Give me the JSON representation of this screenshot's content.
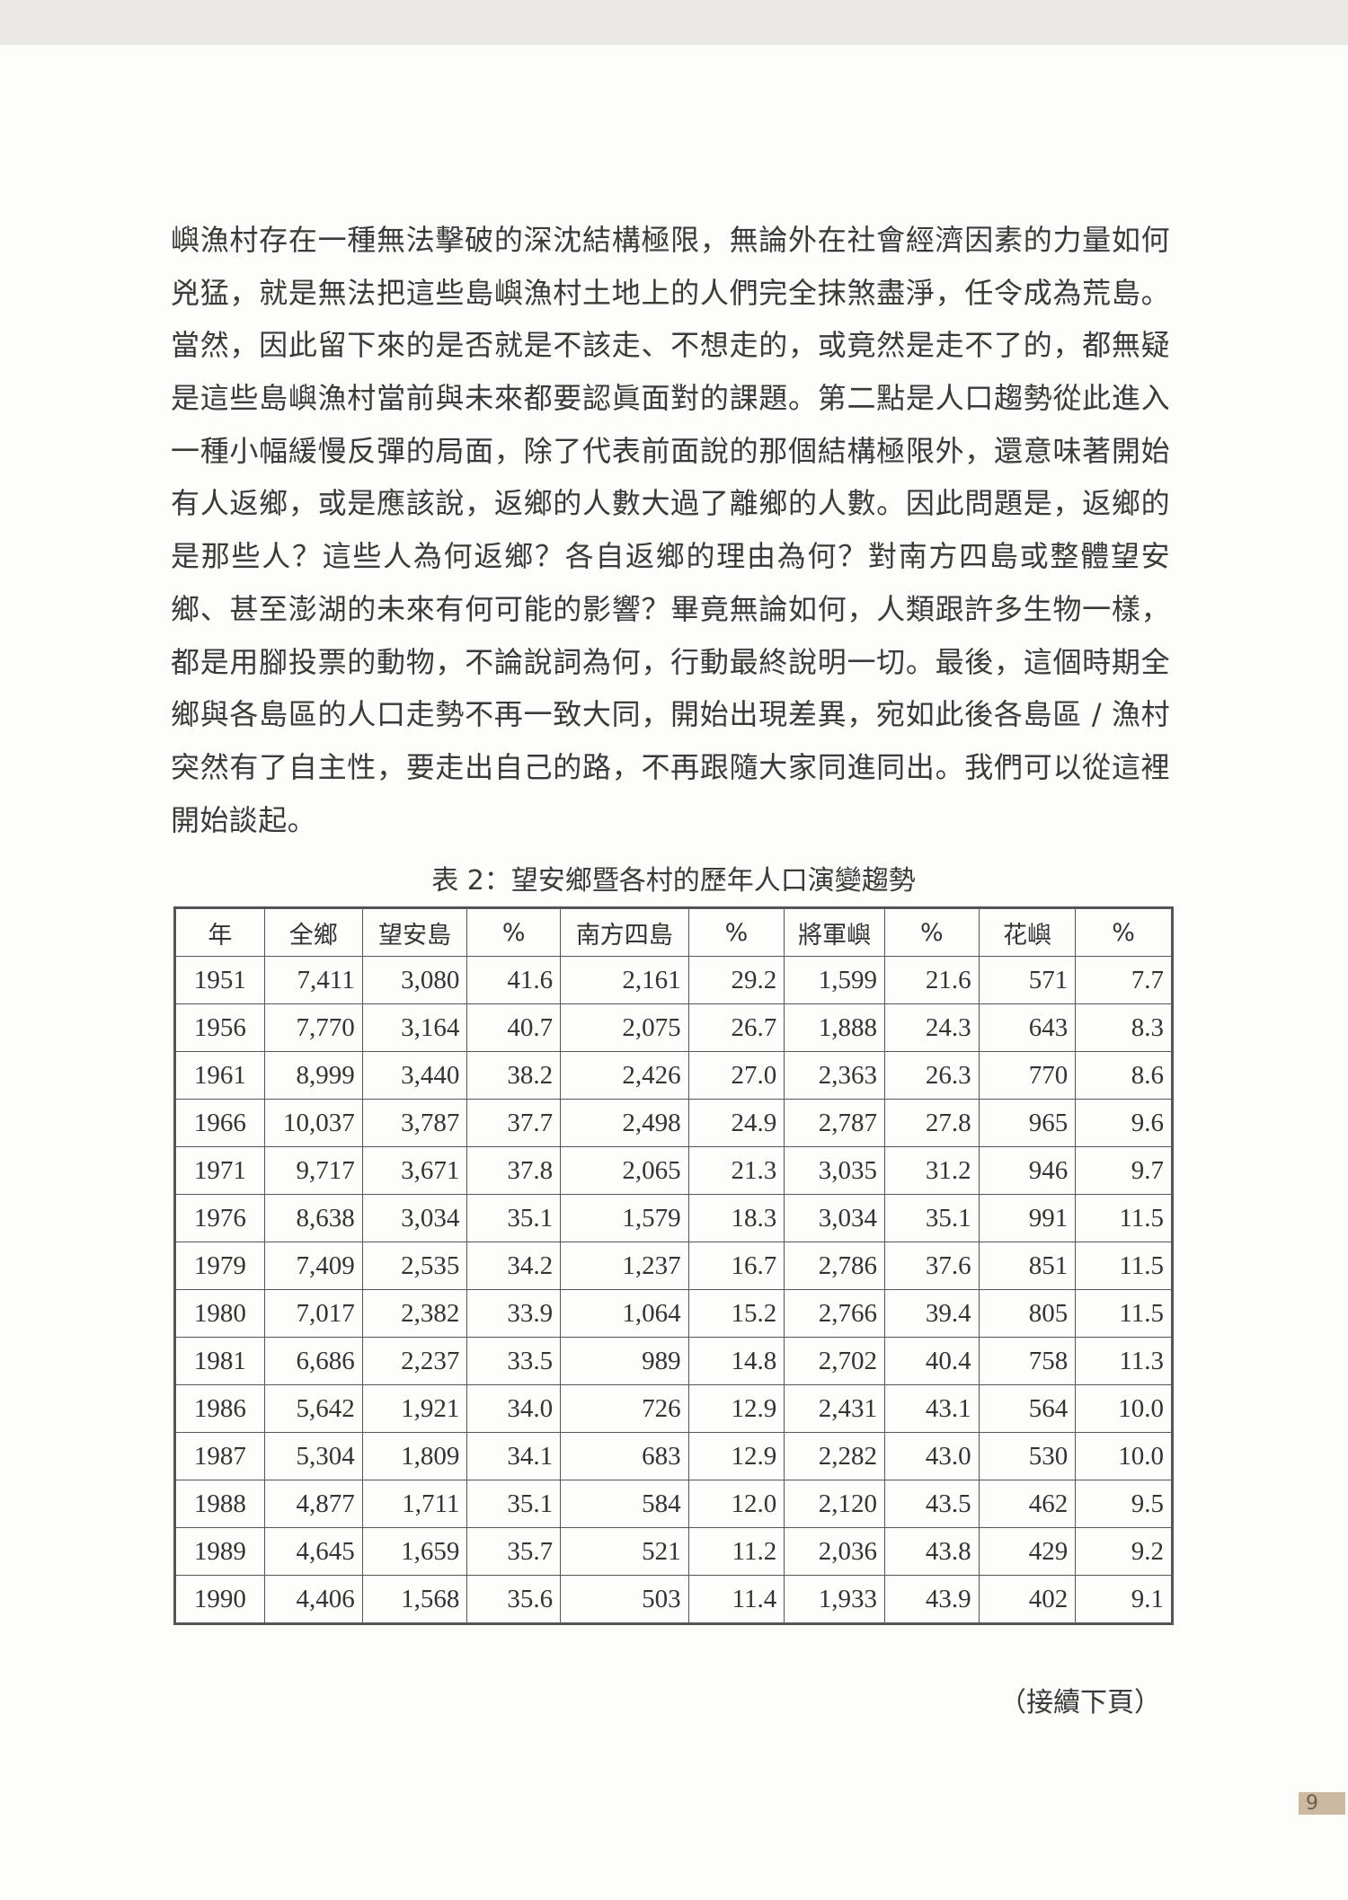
{
  "body_lines": [
    "嶼漁村存在一種無法擊破的深沈結構極限，無論外在社會經濟因素的力量如何",
    "兇猛，就是無法把這些島嶼漁村土地上的人們完全抹煞盡淨，任令成為荒島。",
    "當然，因此留下來的是否就是不該走、不想走的，或竟然是走不了的，都無疑",
    "是這些島嶼漁村當前與未來都要認眞面對的課題。第二點是人口趨勢從此進入",
    "一種小幅緩慢反彈的局面，除了代表前面說的那個結構極限外，還意味著開始",
    "有人返鄉，或是應該說，返鄉的人數大過了離鄉的人數。因此問題是，返鄉的",
    "是那些人？這些人為何返鄉？各自返鄉的理由為何？對南方四島或整體望安",
    "鄉、甚至澎湖的未來有何可能的影響？畢竟無論如何，人類跟許多生物一樣，",
    "都是用腳投票的動物，不論說詞為何，行動最終說明一切。最後，這個時期全",
    "鄉與各島區的人口走勢不再一致大同，開始出現差異，宛如此後各島區 / 漁村",
    "突然有了自主性，要走出自己的路，不再跟隨大家同進同出。我們可以從這裡",
    "開始談起。"
  ],
  "table": {
    "caption": "表 2：望安鄉暨各村的歷年人口演變趨勢",
    "headers": [
      "年",
      "全鄉",
      "望安島",
      "%",
      "南方四島",
      "%",
      "將軍嶼",
      "%",
      "花嶼",
      "%"
    ],
    "rows": [
      [
        "1951",
        "7,411",
        "3,080",
        "41.6",
        "2,161",
        "29.2",
        "1,599",
        "21.6",
        "571",
        "7.7"
      ],
      [
        "1956",
        "7,770",
        "3,164",
        "40.7",
        "2,075",
        "26.7",
        "1,888",
        "24.3",
        "643",
        "8.3"
      ],
      [
        "1961",
        "8,999",
        "3,440",
        "38.2",
        "2,426",
        "27.0",
        "2,363",
        "26.3",
        "770",
        "8.6"
      ],
      [
        "1966",
        "10,037",
        "3,787",
        "37.7",
        "2,498",
        "24.9",
        "2,787",
        "27.8",
        "965",
        "9.6"
      ],
      [
        "1971",
        "9,717",
        "3,671",
        "37.8",
        "2,065",
        "21.3",
        "3,035",
        "31.2",
        "946",
        "9.7"
      ],
      [
        "1976",
        "8,638",
        "3,034",
        "35.1",
        "1,579",
        "18.3",
        "3,034",
        "35.1",
        "991",
        "11.5"
      ],
      [
        "1979",
        "7,409",
        "2,535",
        "34.2",
        "1,237",
        "16.7",
        "2,786",
        "37.6",
        "851",
        "11.5"
      ],
      [
        "1980",
        "7,017",
        "2,382",
        "33.9",
        "1,064",
        "15.2",
        "2,766",
        "39.4",
        "805",
        "11.5"
      ],
      [
        "1981",
        "6,686",
        "2,237",
        "33.5",
        "989",
        "14.8",
        "2,702",
        "40.4",
        "758",
        "11.3"
      ],
      [
        "1986",
        "5,642",
        "1,921",
        "34.0",
        "726",
        "12.9",
        "2,431",
        "43.1",
        "564",
        "10.0"
      ],
      [
        "1987",
        "5,304",
        "1,809",
        "34.1",
        "683",
        "12.9",
        "2,282",
        "43.0",
        "530",
        "10.0"
      ],
      [
        "1988",
        "4,877",
        "1,711",
        "35.1",
        "584",
        "12.0",
        "2,120",
        "43.5",
        "462",
        "9.5"
      ],
      [
        "1989",
        "4,645",
        "1,659",
        "35.7",
        "521",
        "11.2",
        "2,036",
        "43.8",
        "429",
        "9.2"
      ],
      [
        "1990",
        "4,406",
        "1,568",
        "35.6",
        "503",
        "11.4",
        "1,933",
        "43.9",
        "402",
        "9.1"
      ]
    ]
  },
  "continued_note": "（接續下頁）",
  "page_number": "9",
  "colors": {
    "page_number_bg": "#cdb8a0"
  }
}
